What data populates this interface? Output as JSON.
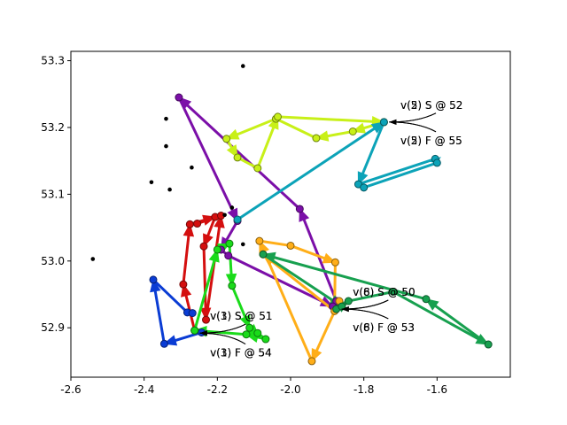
{
  "chart_data": {
    "type": "scatter",
    "title": "",
    "xlabel": "",
    "ylabel": "",
    "xlim": [
      -2.6,
      -1.4
    ],
    "ylim": [
      52.826,
      53.314
    ],
    "xticks": [
      "-2.6",
      "-2.4",
      "-2.2",
      "-2.0",
      "-1.8",
      "-1.6"
    ],
    "yticks": [
      "52.9",
      "53.0",
      "53.1",
      "53.2",
      "53.3"
    ],
    "xtick_values": [
      -2.6,
      -2.4,
      -2.2,
      -2.0,
      -1.8,
      -1.6
    ],
    "ytick_values": [
      52.9,
      53.0,
      53.1,
      53.2,
      53.3
    ],
    "grid": false,
    "legend": "none",
    "background_points": [
      [
        -2.13,
        53.292
      ],
      [
        -2.34,
        53.213
      ],
      [
        -2.34,
        53.172
      ],
      [
        -2.27,
        53.14
      ],
      [
        -2.38,
        53.118
      ],
      [
        -2.33,
        53.107
      ],
      [
        -2.16,
        53.08
      ],
      [
        -2.18,
        53.069
      ],
      [
        -2.54,
        53.003
      ],
      [
        -2.13,
        53.025
      ]
    ],
    "routes": [
      {
        "color": "#7b0fa8",
        "points": [
          [
            -1.875,
            52.94
          ],
          [
            -1.975,
            53.078
          ],
          [
            -2.305,
            53.245
          ],
          [
            -2.145,
            53.06
          ],
          [
            -2.19,
            53.017
          ],
          [
            -2.17,
            53.008
          ],
          [
            -1.885,
            52.932
          ]
        ],
        "arrows_on_segments": [
          0,
          1,
          2,
          3,
          5
        ]
      },
      {
        "color": "#0a3cd4",
        "points": [
          [
            -2.243,
            52.893
          ],
          [
            -2.345,
            52.876
          ],
          [
            -2.375,
            52.972
          ],
          [
            -2.282,
            52.923
          ],
          [
            -2.268,
            52.922
          ]
        ],
        "arrows_on_segments": [
          0,
          1
        ]
      },
      {
        "color": "#d40f0f",
        "points": [
          [
            -2.262,
            52.896
          ],
          [
            -2.293,
            52.965
          ],
          [
            -2.275,
            53.055
          ],
          [
            -2.206,
            53.066
          ],
          [
            -2.237,
            53.022
          ],
          [
            -2.231,
            52.912
          ],
          [
            -2.19,
            53.068
          ],
          [
            -2.255,
            53.056
          ]
        ],
        "arrows_on_segments": [
          0,
          1,
          2,
          3,
          4,
          5
        ]
      },
      {
        "color": "#1adb1a",
        "points": [
          [
            -2.262,
            52.896
          ],
          [
            -2.2,
            53.017
          ],
          [
            -2.167,
            53.026
          ],
          [
            -2.16,
            52.963
          ],
          [
            -2.112,
            52.9
          ],
          [
            -2.09,
            52.892
          ],
          [
            -2.068,
            52.883
          ],
          [
            -2.121,
            52.89
          ],
          [
            -2.262,
            52.896
          ]
        ],
        "arrows_on_segments": [
          0,
          1,
          2,
          3,
          4,
          6,
          7
        ]
      },
      {
        "color": "#ffae18",
        "points": [
          [
            -1.867,
            52.94
          ],
          [
            -1.942,
            52.85
          ],
          [
            -2.085,
            53.03
          ],
          [
            -2.0,
            53.023
          ],
          [
            -1.878,
            52.998
          ],
          [
            -1.88,
            52.925
          ],
          [
            -2.075,
            53.01
          ]
        ],
        "arrows_on_segments": [
          0,
          1,
          3,
          4,
          5
        ]
      },
      {
        "color": "#17a04f",
        "points": [
          [
            -1.875,
            52.928
          ],
          [
            -1.842,
            52.94
          ],
          [
            -1.72,
            52.954
          ],
          [
            -1.46,
            52.875
          ],
          [
            -1.63,
            52.943
          ],
          [
            -2.075,
            53.01
          ],
          [
            -1.86,
            52.932
          ]
        ],
        "arrows_on_segments": [
          0,
          2,
          3,
          4,
          5
        ]
      },
      {
        "color": "#c8f018",
        "points": [
          [
            -1.745,
            53.208
          ],
          [
            -1.83,
            53.194
          ],
          [
            -1.93,
            53.184
          ],
          [
            -2.04,
            53.213
          ],
          [
            -2.175,
            53.183
          ],
          [
            -2.145,
            53.155
          ],
          [
            -2.09,
            53.139
          ],
          [
            -2.035,
            53.216
          ],
          [
            -1.745,
            53.208
          ]
        ],
        "arrows_on_segments": [
          0,
          1,
          3,
          4,
          6,
          7
        ]
      },
      {
        "color": "#0ca3b8",
        "points": [
          [
            -2.145,
            53.062
          ],
          [
            -1.745,
            53.208
          ],
          [
            -1.815,
            53.115
          ],
          [
            -1.605,
            53.153
          ],
          [
            -1.6,
            53.147
          ],
          [
            -1.8,
            53.11
          ]
        ],
        "arrows_on_segments": [
          0,
          1,
          3
        ]
      }
    ],
    "annotations": [
      {
        "text": "v(2) S @ 52",
        "xy": [
          -1.745,
          53.208
        ],
        "text_xy": [
          -1.7,
          53.228
        ]
      },
      {
        "text": "v(5) S @ 52",
        "xy": [
          -1.745,
          53.208
        ],
        "text_xy": [
          -1.7,
          53.228
        ]
      },
      {
        "text": "v(2) F @ 55",
        "xy": [
          -1.745,
          53.208
        ],
        "text_xy": [
          -1.7,
          53.175
        ]
      },
      {
        "text": "v(5) F @ 55",
        "xy": [
          -1.745,
          53.208
        ],
        "text_xy": [
          -1.7,
          53.175
        ]
      },
      {
        "text": "v(6) S @ 50",
        "xy": [
          -1.875,
          52.928
        ],
        "text_xy": [
          -1.83,
          52.948
        ]
      },
      {
        "text": "v(8) S @ 50",
        "xy": [
          -1.875,
          52.928
        ],
        "text_xy": [
          -1.83,
          52.948
        ]
      },
      {
        "text": "v(6) F @ 53",
        "xy": [
          -1.875,
          52.928
        ],
        "text_xy": [
          -1.83,
          52.895
        ]
      },
      {
        "text": "v(8) F @ 53",
        "xy": [
          -1.875,
          52.928
        ],
        "text_xy": [
          -1.83,
          52.895
        ]
      },
      {
        "text": "v(1) S @ 51",
        "xy": [
          -2.262,
          52.892
        ],
        "text_xy": [
          -2.22,
          52.912
        ]
      },
      {
        "text": "v(3) S @ 51",
        "xy": [
          -2.262,
          52.892
        ],
        "text_xy": [
          -2.22,
          52.912
        ]
      },
      {
        "text": "v(1) F @ 54",
        "xy": [
          -2.262,
          52.892
        ],
        "text_xy": [
          -2.22,
          52.857
        ]
      },
      {
        "text": "v(3) F @ 54",
        "xy": [
          -2.262,
          52.892
        ],
        "text_xy": [
          -2.22,
          52.857
        ]
      }
    ]
  }
}
